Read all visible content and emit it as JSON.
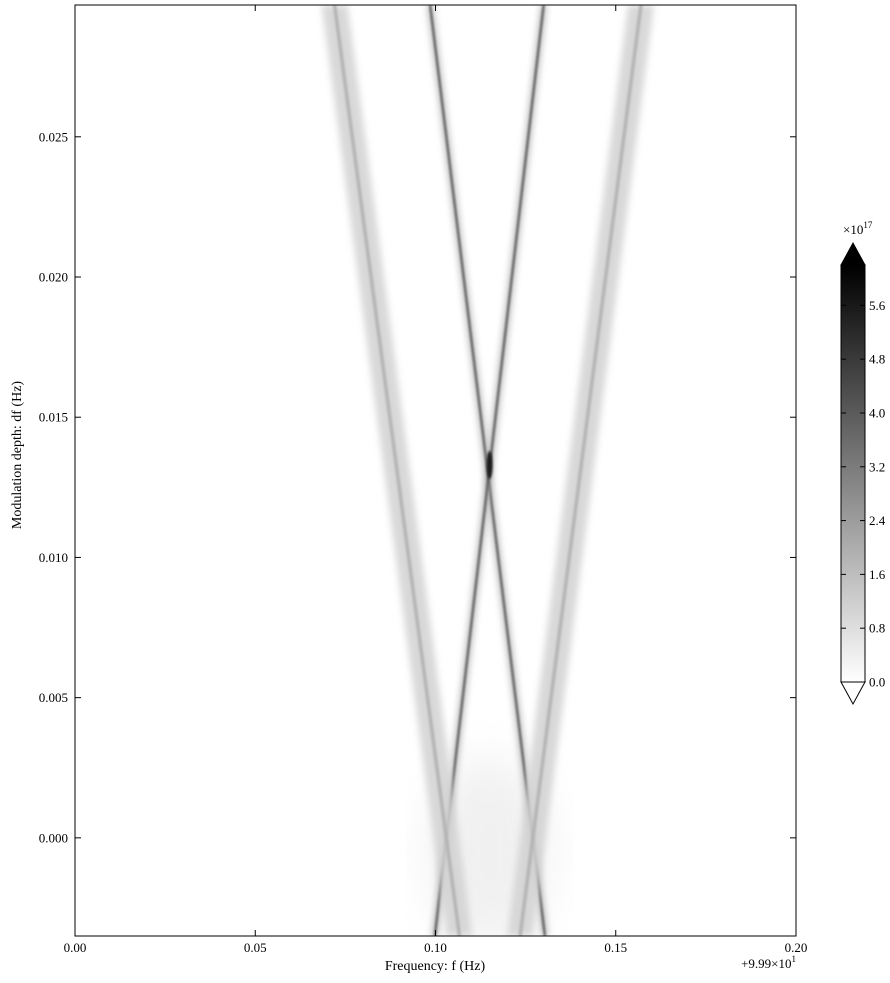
{
  "chart_data": {
    "type": "heatmap",
    "title": "",
    "xlabel": "Frequency: f (Hz)",
    "ylabel": "Modulation depth: df (Hz)",
    "x_offset_label": "+9.99×10",
    "x_offset_exponent": "1",
    "xlim": [
      0.0,
      0.2
    ],
    "ylim": [
      -0.0035,
      0.0297
    ],
    "x_ticks": [
      0.0,
      0.05,
      0.1,
      0.15,
      0.2
    ],
    "x_tick_labels": [
      "0.00",
      "0.05",
      "0.10",
      "0.15",
      "0.20"
    ],
    "y_ticks": [
      0.0,
      0.005,
      0.01,
      0.015,
      0.02,
      0.025
    ],
    "y_tick_labels": [
      "0.000",
      "0.005",
      "0.010",
      "0.015",
      "0.020",
      "0.025"
    ],
    "colormap": "gray_r",
    "colorbar": {
      "range": [
        0.0,
        6.2
      ],
      "ticks": [
        0.0,
        0.8,
        1.6,
        2.4,
        3.2,
        4.0,
        4.8,
        5.6
      ],
      "tick_labels": [
        "0.0",
        "0.8",
        "1.6",
        "2.4",
        "3.2",
        "4.0",
        "4.8",
        "5.6"
      ],
      "multiplier_label": "×10",
      "multiplier_exponent": "17",
      "extend": "both"
    },
    "features": [
      {
        "name": "",
        "kind": "line",
        "x_at_y0": 0.127,
        "crossing": [
          0.115,
          0.0133
        ],
        "x_at_ymax": 0.0985
      },
      {
        "name": "",
        "kind": "line",
        "x_at_y0": 0.103,
        "crossing": [
          0.115,
          0.0133
        ],
        "x_at_ymax": 0.13
      },
      {
        "name": "",
        "kind": "band",
        "x_at_y0": 0.103,
        "x_at_ymax": 0.072
      },
      {
        "name": "",
        "kind": "band",
        "x_at_y0": 0.127,
        "x_at_ymax": 0.157
      }
    ]
  }
}
